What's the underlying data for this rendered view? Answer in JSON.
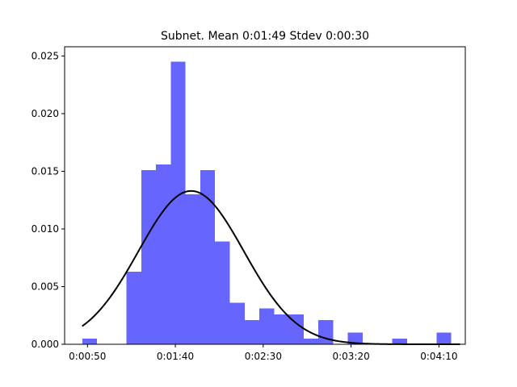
{
  "chart_data": {
    "type": "bar",
    "title": "Subnet. Mean 0:01:49 Stdev 0:00:30",
    "xlabel": "",
    "ylabel": "",
    "xlim": [
      37,
      265
    ],
    "ylim": [
      0,
      0.0258
    ],
    "x_ticks": [
      {
        "value": 50,
        "label": "0:00:50"
      },
      {
        "value": 100,
        "label": "0:01:40"
      },
      {
        "value": 150,
        "label": "0:02:30"
      },
      {
        "value": 200,
        "label": "0:03:20"
      },
      {
        "value": 250,
        "label": "0:04:10"
      }
    ],
    "y_ticks": [
      {
        "value": 0.0,
        "label": "0.000"
      },
      {
        "value": 0.005,
        "label": "0.005"
      },
      {
        "value": 0.01,
        "label": "0.010"
      },
      {
        "value": 0.015,
        "label": "0.015"
      },
      {
        "value": 0.02,
        "label": "0.020"
      },
      {
        "value": 0.025,
        "label": "0.025"
      }
    ],
    "bin_width": 8.4,
    "bins": [
      {
        "x": 47.0,
        "value": 0.0005
      },
      {
        "x": 72.2,
        "value": 0.0063
      },
      {
        "x": 80.6,
        "value": 0.0151
      },
      {
        "x": 89.0,
        "value": 0.0156
      },
      {
        "x": 97.4,
        "value": 0.0245
      },
      {
        "x": 105.8,
        "value": 0.013
      },
      {
        "x": 114.2,
        "value": 0.0151
      },
      {
        "x": 122.6,
        "value": 0.0089
      },
      {
        "x": 131.0,
        "value": 0.0036
      },
      {
        "x": 139.4,
        "value": 0.0021
      },
      {
        "x": 147.8,
        "value": 0.0031
      },
      {
        "x": 156.2,
        "value": 0.0026
      },
      {
        "x": 164.6,
        "value": 0.0026
      },
      {
        "x": 173.0,
        "value": 0.0005
      },
      {
        "x": 181.4,
        "value": 0.0021
      },
      {
        "x": 198.2,
        "value": 0.001
      },
      {
        "x": 223.4,
        "value": 0.0005
      },
      {
        "x": 248.6,
        "value": 0.001
      }
    ],
    "normal_curve": {
      "mean": 109,
      "stdev": 30,
      "x_range": [
        47,
        262
      ]
    },
    "colors": {
      "bar": "#6666ff",
      "curve": "#000000"
    },
    "grid": false
  }
}
